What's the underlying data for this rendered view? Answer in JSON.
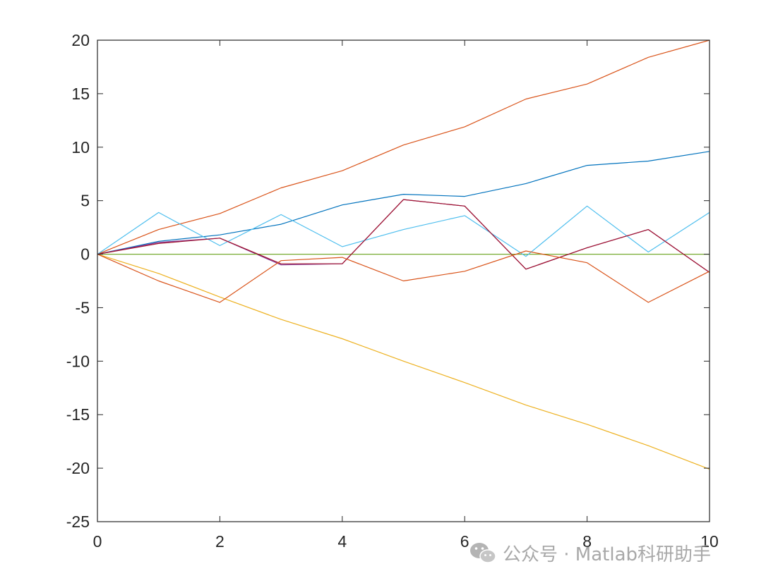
{
  "chart_data": {
    "type": "line",
    "title": "",
    "xlabel": "",
    "ylabel": "",
    "xlim": [
      0,
      10
    ],
    "ylim": [
      -25,
      20
    ],
    "xticks": [
      0,
      2,
      4,
      6,
      8,
      10
    ],
    "yticks": [
      20,
      15,
      10,
      5,
      0,
      -5,
      -10,
      -15,
      -20,
      -25
    ],
    "grid": false,
    "legend": "none",
    "x": [
      0,
      1,
      2,
      3,
      4,
      5,
      6,
      7,
      8,
      9,
      10
    ],
    "series": [
      {
        "color": "#0072BD",
        "values": [
          0,
          1.2,
          1.8,
          2.8,
          4.6,
          5.6,
          5.4,
          6.6,
          8.3,
          8.7,
          9.6
        ]
      },
      {
        "color": "#D95319",
        "values": [
          0,
          2.3,
          3.8,
          6.2,
          7.8,
          10.2,
          11.9,
          14.5,
          15.9,
          18.4,
          20.0
        ]
      },
      {
        "color": "#EDB120",
        "values": [
          0,
          -1.8,
          -4.0,
          -6.1,
          -7.9,
          -10.0,
          -12.0,
          -14.1,
          -15.9,
          -17.9,
          -20.1
        ]
      },
      {
        "color": "#7E2F8E",
        "values": [
          0,
          1.1,
          1.5,
          -1.0,
          -0.9,
          5.1,
          4.5,
          -1.4,
          0.6,
          2.3,
          -1.7
        ]
      },
      {
        "color": "#77AC30",
        "values": [
          0,
          0,
          0,
          0,
          0,
          0,
          0,
          0,
          0,
          0,
          0
        ]
      },
      {
        "color": "#4DBEEE",
        "values": [
          0,
          3.9,
          0.8,
          3.7,
          0.7,
          2.3,
          3.6,
          -0.2,
          4.5,
          0.2,
          3.9
        ]
      },
      {
        "color": "#A2142F",
        "values": [
          0,
          1.0,
          1.5,
          -0.9,
          -0.9,
          5.1,
          4.5,
          -1.4,
          0.6,
          2.3,
          -1.7
        ]
      },
      {
        "color": "#D95319",
        "values": [
          0,
          -2.5,
          -4.5,
          -0.6,
          -0.3,
          -2.5,
          -1.6,
          0.3,
          -0.8,
          -4.5,
          -1.6
        ]
      }
    ]
  },
  "watermark": {
    "icon": "wechat-icon",
    "text": "公众号 · Matlab科研助手"
  }
}
